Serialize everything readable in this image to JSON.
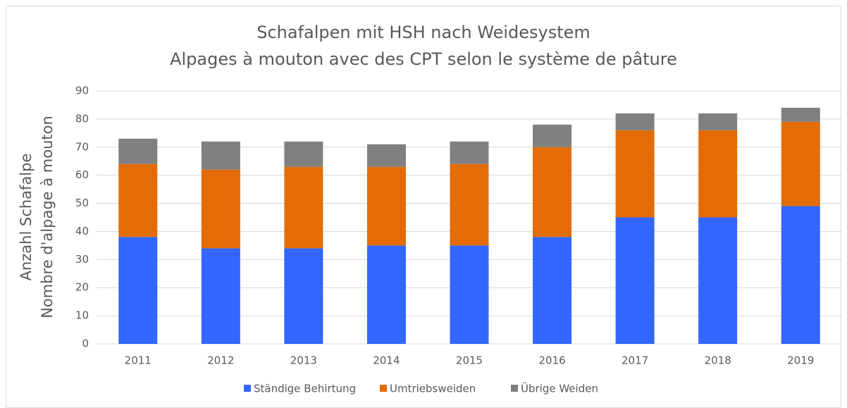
{
  "chart_data": {
    "type": "bar",
    "stacked": true,
    "title": [
      "Schafalpen mit HSH nach Weidesystem",
      "Alpages à mouton avec des CPT selon le système de pâture"
    ],
    "ylabel": [
      "Anzahl Schafalpe",
      "Nombre d'alpage à mouton"
    ],
    "categories": [
      "2011",
      "2012",
      "2013",
      "2014",
      "2015",
      "2016",
      "2017",
      "2018",
      "2019"
    ],
    "series": [
      {
        "name": "Ständige Behirtung",
        "color": "#3366ff",
        "values": [
          38,
          34,
          34,
          35,
          35,
          38,
          45,
          45,
          49
        ]
      },
      {
        "name": "Umtriebsweiden",
        "color": "#e36c09",
        "values": [
          26,
          28,
          29,
          28,
          29,
          32,
          31,
          31,
          30
        ]
      },
      {
        "name": "Übrige Weiden",
        "color": "#808080",
        "values": [
          9,
          10,
          9,
          8,
          8,
          8,
          6,
          6,
          5
        ]
      }
    ],
    "ylim": [
      0,
      90
    ],
    "yticks": [
      0,
      10,
      20,
      30,
      40,
      50,
      60,
      70,
      80,
      90
    ],
    "grid": true,
    "legend": "bottom"
  }
}
